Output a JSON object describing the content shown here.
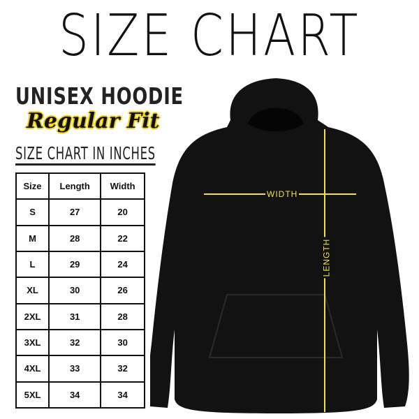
{
  "title": "SIZE CHART",
  "product": "UNISEX HOODIE",
  "fit": "Regular Fit",
  "subtitle": "SIZE CHART IN INCHES",
  "table": {
    "headers": [
      "Size",
      "Length",
      "Width"
    ],
    "rows": [
      [
        "S",
        "27",
        "20"
      ],
      [
        "M",
        "28",
        "22"
      ],
      [
        "L",
        "29",
        "24"
      ],
      [
        "XL",
        "30",
        "26"
      ],
      [
        "2XL",
        "31",
        "28"
      ],
      [
        "3XL",
        "32",
        "30"
      ],
      [
        "4XL",
        "33",
        "32"
      ],
      [
        "5XL",
        "34",
        "34"
      ]
    ]
  },
  "diagram": {
    "width_label": "WIDTH",
    "length_label": "LENGTH",
    "line_color": "#f2e33a",
    "garment_color": "#111111"
  }
}
